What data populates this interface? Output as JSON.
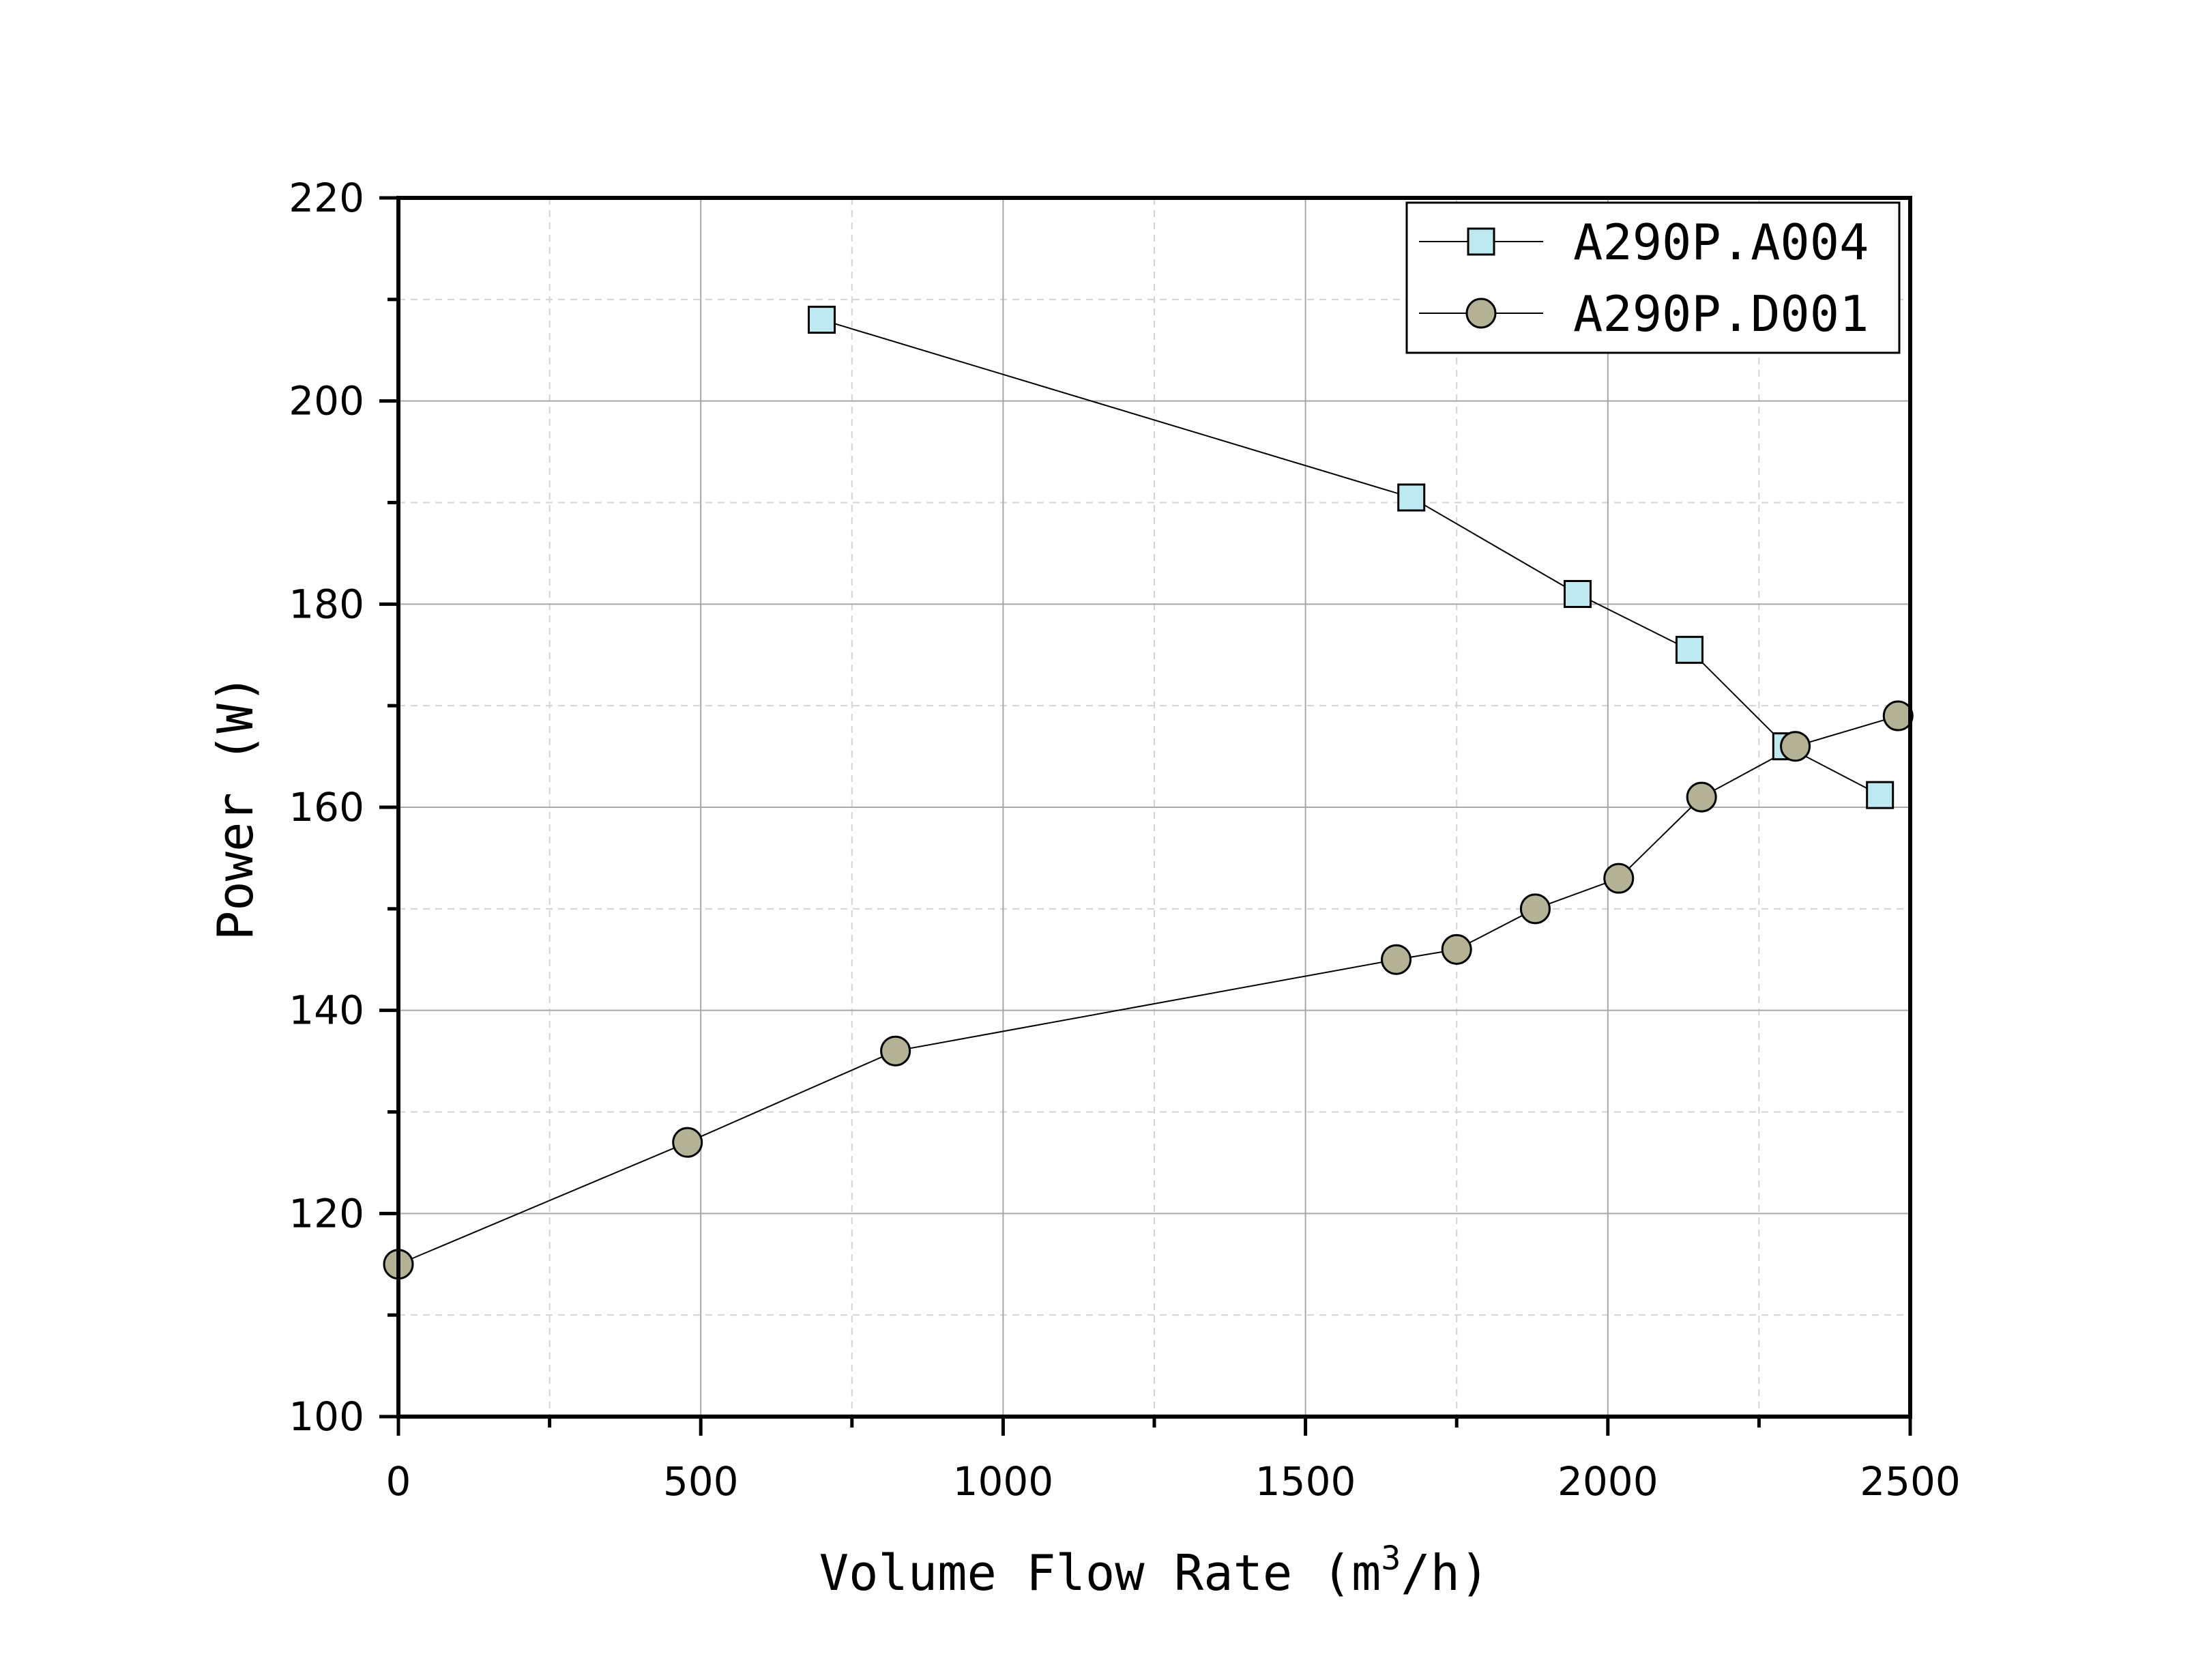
{
  "chart_data": {
    "type": "line",
    "title": "",
    "xlabel": "Volume Flow Rate (m",
    "xlabel_sup": "3",
    "xlabel_tail": "/h)",
    "ylabel": "Power (W)",
    "xlim": [
      0,
      2500
    ],
    "ylim": [
      100,
      220
    ],
    "xticks": [
      0,
      500,
      1000,
      1500,
      2000,
      2500
    ],
    "yticks": [
      100,
      120,
      140,
      160,
      180,
      200,
      220
    ],
    "x_minor_step": 250,
    "y_minor_step": 10,
    "grid": true,
    "legend_position": "top-right",
    "series": [
      {
        "name": "A290P.A004",
        "marker": "square",
        "color": "#bfe9f0",
        "x": [
          700,
          1675,
          1950,
          2135,
          2295,
          2450
        ],
        "y": [
          208,
          190.5,
          181,
          175.5,
          166,
          161.2
        ]
      },
      {
        "name": "A290P.D001",
        "marker": "circle",
        "color": "#b3b295",
        "x": [
          0,
          478,
          822,
          1650,
          1750,
          1880,
          2018,
          2155,
          2310,
          2480
        ],
        "y": [
          115,
          127,
          136,
          145,
          146,
          150,
          153,
          161,
          166,
          169
        ]
      }
    ]
  },
  "colors": {
    "axis": "#000000",
    "grid_major": "#a8a8a8",
    "grid_minor": "#d4d4d4",
    "line": "#000000"
  }
}
